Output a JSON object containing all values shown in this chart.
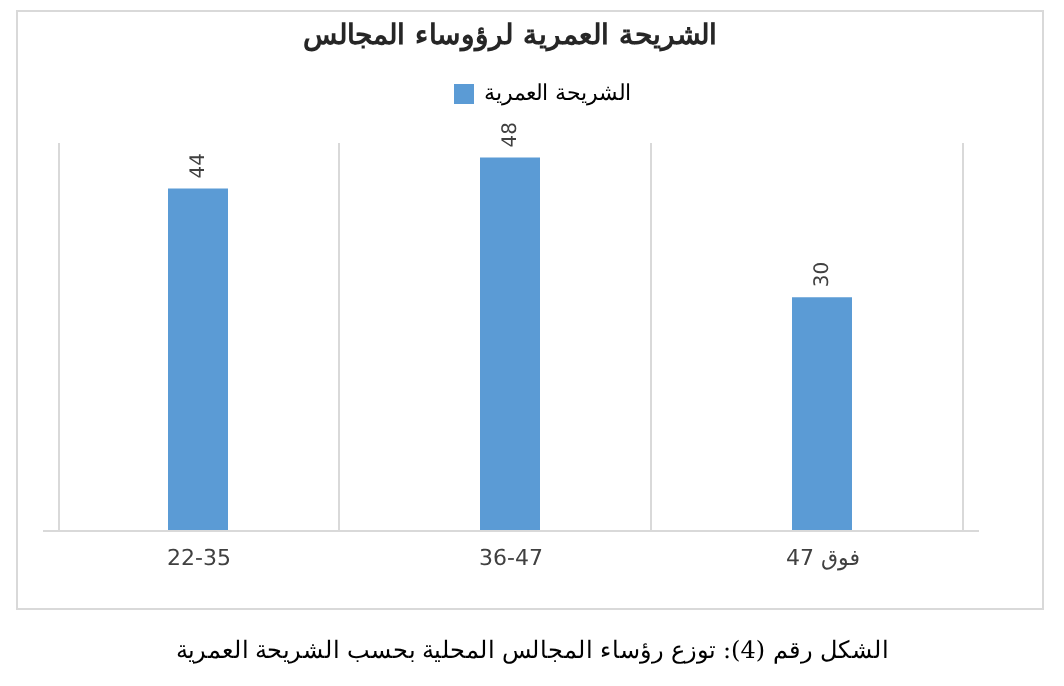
{
  "chart_data": {
    "type": "bar",
    "title": "الشريحة العمرية لرؤوساء المجالس",
    "categories": [
      "22-35",
      "36-47",
      "فوق 47"
    ],
    "series": [
      {
        "name": "الشريحة العمرية",
        "color": "#5b9bd5",
        "values": [
          44,
          48,
          30
        ]
      }
    ],
    "tick_labels": "x",
    "data_labels": true,
    "grid": "x",
    "legend": "top",
    "annotations": [
      "الشكل رقم (4): توزع رؤساء المجالس المحلية بحسب الشريحة العمرية"
    ]
  }
}
